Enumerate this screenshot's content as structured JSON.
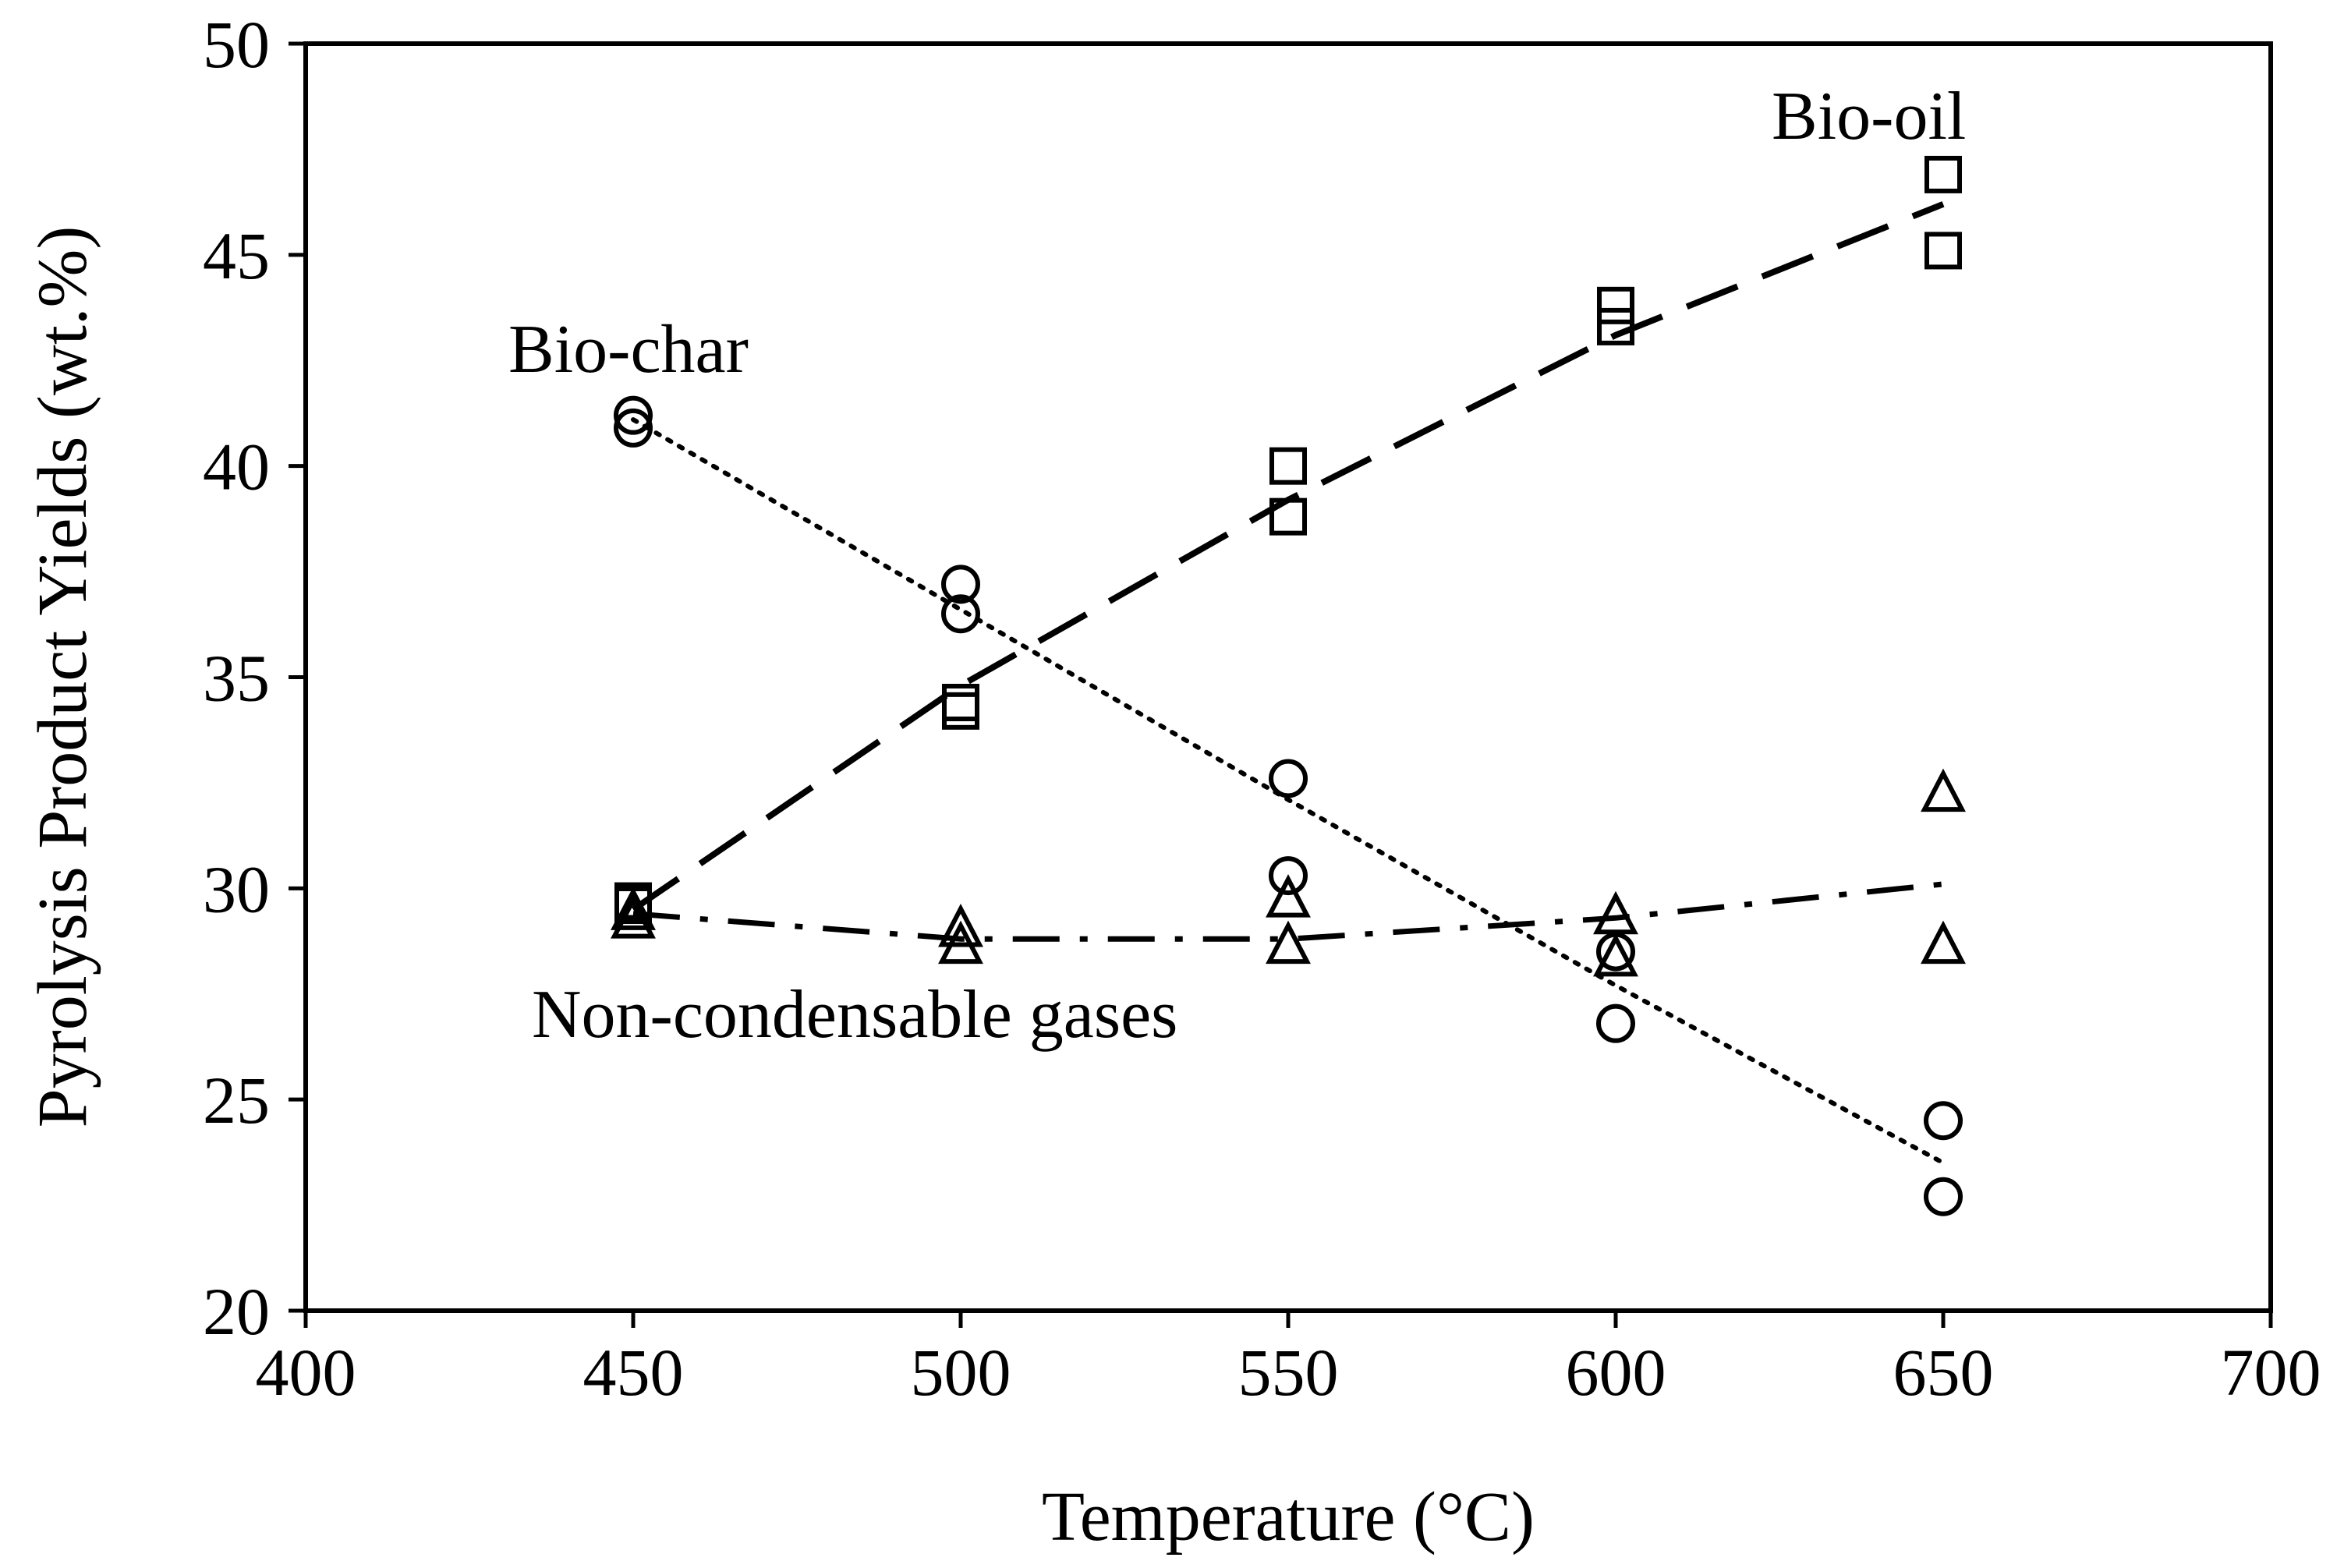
{
  "chart_data": {
    "type": "scatter",
    "title": "",
    "xlabel": "Temperature (°C)",
    "ylabel": "Pyrolysis Product Yields (wt.%)",
    "xlim": [
      400,
      700
    ],
    "ylim": [
      20,
      50
    ],
    "xticks": [
      400,
      450,
      500,
      550,
      600,
      650,
      700
    ],
    "yticks": [
      20,
      25,
      30,
      35,
      40,
      45,
      50
    ],
    "grid": false,
    "legend": "none",
    "annotations": [
      {
        "id": "bio-oil",
        "text": "Bio-oil"
      },
      {
        "id": "bio-char",
        "text": "Bio-char"
      },
      {
        "id": "gases",
        "text": "Non-condensable gases"
      }
    ],
    "series": [
      {
        "name": "Bio-oil",
        "marker": "square",
        "line_style": "long-dash",
        "points": [
          [
            450,
            29.6
          ],
          [
            450,
            29.7
          ],
          [
            500,
            34.2
          ],
          [
            500,
            34.4
          ],
          [
            550,
            38.8
          ],
          [
            550,
            40.0
          ],
          [
            600,
            43.3
          ],
          [
            600,
            43.8
          ],
          [
            650,
            45.1
          ],
          [
            650,
            46.9
          ]
        ],
        "trend": [
          [
            450,
            29.5
          ],
          [
            500,
            34.8
          ],
          [
            550,
            39.2
          ],
          [
            600,
            43.1
          ],
          [
            650,
            46.2
          ]
        ]
      },
      {
        "name": "Bio-char",
        "marker": "circle",
        "line_style": "dotted",
        "points": [
          [
            450,
            40.9
          ],
          [
            450,
            41.2
          ],
          [
            500,
            36.5
          ],
          [
            500,
            37.2
          ],
          [
            550,
            32.6
          ],
          [
            550,
            30.3
          ],
          [
            600,
            28.5
          ],
          [
            600,
            26.8
          ],
          [
            650,
            24.5
          ],
          [
            650,
            22.7
          ]
        ],
        "trend": [
          [
            450,
            41.1
          ],
          [
            500,
            36.6
          ],
          [
            550,
            32.1
          ],
          [
            600,
            27.7
          ],
          [
            650,
            23.5
          ]
        ]
      },
      {
        "name": "Non-condensable gases",
        "marker": "triangle",
        "line_style": "dash-dot",
        "points": [
          [
            450,
            29.2
          ],
          [
            450,
            29.4
          ],
          [
            500,
            29.0
          ],
          [
            500,
            28.6
          ],
          [
            550,
            29.7
          ],
          [
            550,
            28.6
          ],
          [
            600,
            29.3
          ],
          [
            600,
            28.3
          ],
          [
            650,
            32.2
          ],
          [
            650,
            28.6
          ]
        ],
        "trend": [
          [
            450,
            29.4
          ],
          [
            500,
            28.8
          ],
          [
            550,
            28.8
          ],
          [
            600,
            29.3
          ],
          [
            650,
            30.1
          ]
        ]
      }
    ]
  }
}
